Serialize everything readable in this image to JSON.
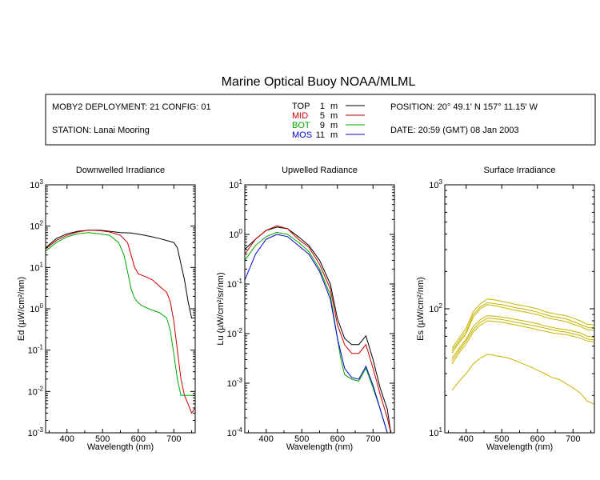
{
  "title": "Marine Optical Buoy NOAA/MLML",
  "info": {
    "deployment": "MOBY2 DEPLOYMENT: 21 CONFIG: 01",
    "station": "STATION: Lanai Mooring",
    "position": "POSITION: 20° 49.1' N   157° 11.15' W",
    "date": "DATE: 20:59 (GMT) 08 Jan 2003"
  },
  "legend": [
    {
      "name": "TOP",
      "depth": "1",
      "unit": "m",
      "color": "#000000"
    },
    {
      "name": "MID",
      "depth": "5",
      "unit": "m",
      "color": "#cc0000"
    },
    {
      "name": "BOT",
      "depth": "9",
      "unit": "m",
      "color": "#00aa00"
    },
    {
      "name": "MOS",
      "depth": "11",
      "unit": "m",
      "color": "#0000cc"
    }
  ],
  "chart_data": [
    {
      "type": "line",
      "title": "Downwelled Irradiance",
      "xlabel": "Wavelength (nm)",
      "ylabel": "Ed  (µW/cm²/nm)",
      "xlim": [
        340,
        760
      ],
      "ylim": [
        0.001,
        1000
      ],
      "yscale": "log",
      "xticks": [
        "400",
        "500",
        "600",
        "700"
      ],
      "yexp": [
        "-3",
        "-2",
        "-1",
        "0",
        "1",
        "2",
        "3"
      ],
      "series": [
        {
          "name": "TOP",
          "color": "#000000",
          "x": [
            340,
            370,
            400,
            430,
            460,
            490,
            520,
            550,
            580,
            610,
            640,
            660,
            680,
            700,
            710,
            720,
            730,
            740,
            750,
            760
          ],
          "y": [
            30,
            50,
            65,
            75,
            80,
            80,
            75,
            70,
            68,
            62,
            55,
            50,
            45,
            40,
            30,
            12,
            5,
            1.5,
            0.6,
            0.6
          ]
        },
        {
          "name": "MID",
          "color": "#cc0000",
          "x": [
            340,
            370,
            400,
            430,
            460,
            490,
            520,
            550,
            570,
            580,
            590,
            600,
            620,
            640,
            660,
            680,
            690,
            700,
            710,
            720,
            730,
            740,
            750,
            760
          ],
          "y": [
            28,
            45,
            60,
            72,
            80,
            78,
            72,
            60,
            40,
            20,
            10,
            7,
            6,
            5,
            3.5,
            2.5,
            1.5,
            0.5,
            0.1,
            0.02,
            0.008,
            0.005,
            0.003,
            0.004
          ]
        },
        {
          "name": "BOT",
          "color": "#00aa00",
          "x": [
            340,
            370,
            400,
            430,
            460,
            490,
            520,
            545,
            560,
            570,
            580,
            590,
            600,
            610,
            630,
            660,
            680,
            690,
            700,
            710,
            720,
            730,
            740,
            750,
            760
          ],
          "y": [
            25,
            40,
            55,
            65,
            70,
            65,
            60,
            40,
            20,
            8,
            3,
            1.8,
            1.4,
            1.2,
            1.0,
            0.8,
            0.6,
            0.3,
            0.08,
            0.02,
            0.008,
            0.008,
            0.008,
            0.008,
            0.008
          ]
        }
      ]
    },
    {
      "type": "line",
      "title": "Upwelled Radiance",
      "xlabel": "Wavelength (nm)",
      "ylabel": "Lu  (µW/cm²/sr/nm)",
      "xlim": [
        340,
        760
      ],
      "ylim": [
        0.0001,
        10
      ],
      "yscale": "log",
      "xticks": [
        "400",
        "500",
        "600",
        "700"
      ],
      "yexp": [
        "-4",
        "-3",
        "-2",
        "-1",
        "0",
        "1"
      ],
      "series": [
        {
          "name": "TOP",
          "color": "#000000",
          "x": [
            340,
            370,
            400,
            430,
            460,
            490,
            520,
            550,
            580,
            600,
            620,
            640,
            660,
            680,
            700,
            720,
            740,
            750,
            760
          ],
          "y": [
            0.5,
            0.8,
            1.2,
            1.4,
            1.3,
            0.9,
            0.6,
            0.3,
            0.1,
            0.02,
            0.008,
            0.006,
            0.006,
            0.009,
            0.003,
            0.0008,
            0.0003,
            0.0001,
            0.0001
          ]
        },
        {
          "name": "MID",
          "color": "#cc0000",
          "x": [
            340,
            370,
            400,
            430,
            460,
            490,
            520,
            550,
            580,
            600,
            620,
            640,
            660,
            680,
            700,
            720,
            740,
            750,
            760
          ],
          "y": [
            0.4,
            0.8,
            1.2,
            1.5,
            1.3,
            0.8,
            0.55,
            0.25,
            0.08,
            0.015,
            0.006,
            0.004,
            0.004,
            0.006,
            0.002,
            0.0006,
            0.0002,
            0.0001,
            0.0001
          ]
        },
        {
          "name": "BOT",
          "color": "#00aa00",
          "x": [
            340,
            370,
            400,
            430,
            460,
            490,
            520,
            550,
            580,
            600,
            610,
            620,
            640,
            660,
            680,
            700,
            720,
            740,
            750,
            760
          ],
          "y": [
            0.3,
            0.6,
            0.9,
            1.1,
            1.0,
            0.7,
            0.45,
            0.2,
            0.06,
            0.008,
            0.003,
            0.0015,
            0.0012,
            0.0011,
            0.002,
            0.0008,
            0.0003,
            0.0001,
            0.0001,
            0.0001
          ]
        },
        {
          "name": "MOS",
          "color": "#0000cc",
          "x": [
            340,
            370,
            400,
            430,
            460,
            490,
            520,
            550,
            580,
            600,
            620,
            640,
            660,
            680,
            700,
            720,
            740,
            750,
            760
          ],
          "y": [
            0.12,
            0.4,
            0.8,
            1.0,
            0.9,
            0.6,
            0.4,
            0.18,
            0.05,
            0.008,
            0.002,
            0.0013,
            0.0012,
            0.0022,
            0.0009,
            0.0003,
            0.0001,
            0.0001,
            0.0001
          ]
        }
      ]
    },
    {
      "type": "line",
      "title": "Surface Irradiance",
      "xlabel": "Wavelength (nm)",
      "ylabel": "Es  (µW/cm²/nm)",
      "xlim": [
        340,
        760
      ],
      "ylim": [
        10,
        1000
      ],
      "yscale": "log",
      "xticks": [
        "400",
        "500",
        "600",
        "700"
      ],
      "yexp": [
        "1",
        "2",
        "3"
      ],
      "series": [
        {
          "name": "Es",
          "color": "#c8b400",
          "x": [
            360,
            380,
            400,
            420,
            440,
            460,
            480,
            500,
            520,
            540,
            560,
            580,
            600,
            620,
            640,
            660,
            680,
            700,
            720,
            740,
            760
          ],
          "y": [
            48,
            58,
            70,
            95,
            110,
            120,
            118,
            115,
            112,
            108,
            106,
            103,
            100,
            95,
            92,
            90,
            88,
            84,
            80,
            75,
            74
          ]
        },
        {
          "name": "Es",
          "color": "#c8b400",
          "x": [
            360,
            380,
            400,
            420,
            440,
            460,
            480,
            500,
            520,
            540,
            560,
            580,
            600,
            620,
            640,
            660,
            680,
            700,
            720,
            740,
            760
          ],
          "y": [
            46,
            55,
            66,
            90,
            104,
            112,
            110,
            108,
            105,
            102,
            100,
            97,
            94,
            90,
            87,
            85,
            83,
            79,
            75,
            71,
            70
          ]
        },
        {
          "name": "Es",
          "color": "#c8b400",
          "x": [
            360,
            380,
            400,
            420,
            440,
            460,
            480,
            500,
            520,
            540,
            560,
            580,
            600,
            620,
            640,
            660,
            680,
            700,
            720,
            740,
            760
          ],
          "y": [
            44,
            53,
            63,
            86,
            100,
            108,
            106,
            103,
            100,
            97,
            95,
            92,
            90,
            86,
            83,
            81,
            79,
            75,
            72,
            68,
            67
          ]
        },
        {
          "name": "Es",
          "color": "#c8b400",
          "x": [
            360,
            380,
            400,
            420,
            440,
            460,
            480,
            500,
            520,
            540,
            560,
            580,
            600,
            620,
            640,
            660,
            680,
            700,
            720,
            740,
            760
          ],
          "y": [
            40,
            48,
            57,
            72,
            82,
            88,
            87,
            86,
            84,
            82,
            80,
            78,
            76,
            73,
            71,
            69,
            68,
            66,
            64,
            60,
            59
          ]
        },
        {
          "name": "Es",
          "color": "#c8b400",
          "x": [
            360,
            380,
            400,
            420,
            440,
            460,
            480,
            500,
            520,
            540,
            560,
            580,
            600,
            620,
            640,
            660,
            680,
            700,
            720,
            740,
            760
          ],
          "y": [
            38,
            46,
            55,
            68,
            78,
            84,
            83,
            82,
            80,
            78,
            76,
            74,
            72,
            70,
            68,
            66,
            65,
            63,
            61,
            57,
            56
          ]
        },
        {
          "name": "Es",
          "color": "#c8b400",
          "x": [
            360,
            380,
            400,
            420,
            440,
            460,
            480,
            500,
            520,
            540,
            560,
            580,
            600,
            620,
            640,
            660,
            680,
            700,
            720,
            740,
            760
          ],
          "y": [
            36,
            44,
            52,
            65,
            74,
            80,
            79,
            78,
            76,
            74,
            72,
            70,
            68,
            66,
            64,
            63,
            62,
            60,
            58,
            55,
            54
          ]
        },
        {
          "name": "Es",
          "color": "#c8b400",
          "x": [
            360,
            380,
            400,
            420,
            440,
            460,
            480,
            500,
            520,
            540,
            560,
            580,
            600,
            620,
            640,
            660,
            680,
            700,
            720,
            740,
            760
          ],
          "y": [
            22,
            26,
            30,
            36,
            40,
            43,
            42,
            41,
            40,
            38,
            36,
            34,
            32,
            30,
            28,
            27,
            25,
            23,
            21,
            18,
            17
          ]
        }
      ]
    }
  ]
}
